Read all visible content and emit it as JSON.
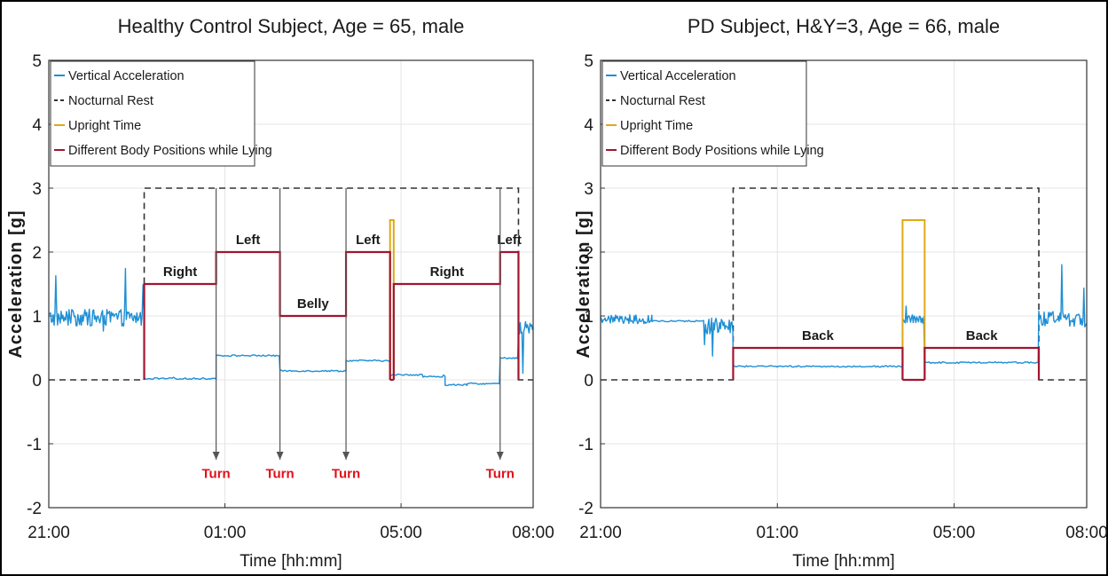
{
  "figure": {
    "frame_color": "#000000",
    "background": "#ffffff"
  },
  "chart_data": [
    {
      "type": "line",
      "title": "Healthy Control Subject, Age = 65, male",
      "xlabel": "Time [hh:mm]",
      "ylabel": "Acceleration [g]",
      "xlim": [
        "21:00",
        "08:00"
      ],
      "ylim": [
        -2,
        5
      ],
      "x_ticks": [
        "21:00",
        "01:00",
        "05:00",
        "08:00"
      ],
      "y_ticks": [
        -2,
        -1,
        0,
        1,
        2,
        3,
        4,
        5
      ],
      "grid": true,
      "legend": {
        "placement": "top-left",
        "entries": [
          {
            "label": "Vertical Acceleration",
            "color": "#1e8fd5",
            "dash": "solid"
          },
          {
            "label": "Nocturnal Rest",
            "color": "#333333",
            "dash": "dashed"
          },
          {
            "label": "Upright Time",
            "color": "#e0a81a",
            "dash": "solid"
          },
          {
            "label": "Different Body Positions while Lying",
            "color": "#a01530",
            "dash": "solid"
          }
        ]
      },
      "series": [
        {
          "name": "Vertical Acceleration",
          "color": "#1e8fd5",
          "segments": [
            {
              "start": "21:00",
              "end": "23:10",
              "level": 0.97,
              "noise": "high"
            },
            {
              "start": "23:10",
              "end": "00:48",
              "level": 0.02,
              "noise": "low"
            },
            {
              "start": "00:48",
              "end": "02:15",
              "level": 0.38,
              "noise": "low"
            },
            {
              "start": "02:15",
              "end": "03:45",
              "level": 0.14,
              "noise": "low"
            },
            {
              "start": "03:45",
              "end": "04:45",
              "level": 0.3,
              "noise": "low"
            },
            {
              "start": "04:45",
              "end": "05:30",
              "level": 0.08,
              "noise": "low"
            },
            {
              "start": "05:30",
              "end": "06:00",
              "level": 0.05,
              "noise": "low"
            },
            {
              "start": "06:00",
              "end": "06:30",
              "level": -0.08,
              "noise": "low"
            },
            {
              "start": "06:30",
              "end": "07:15",
              "level": -0.06,
              "noise": "low"
            },
            {
              "start": "07:15",
              "end": "07:40",
              "level": 0.34,
              "noise": "low"
            },
            {
              "start": "07:40",
              "end": "08:00",
              "level": 0.8,
              "noise": "high"
            }
          ]
        },
        {
          "name": "Nocturnal Rest",
          "color": "#333333",
          "rest_start": "23:10",
          "rest_end": "07:40",
          "rest_level": 3,
          "outside_level": 0
        },
        {
          "name": "Upright Time",
          "color": "#e0a81a",
          "windows": [
            {
              "start": "04:45",
              "end": "04:50",
              "level": 2.5
            }
          ]
        },
        {
          "name": "Different Body Positions while Lying",
          "color": "#a01530",
          "steps": [
            {
              "start": "23:10",
              "end": "00:48",
              "level": 1.5,
              "label": "Right"
            },
            {
              "start": "00:48",
              "end": "02:15",
              "level": 2.0,
              "label": "Left"
            },
            {
              "start": "02:15",
              "end": "03:45",
              "level": 1.0,
              "label": "Belly"
            },
            {
              "start": "03:45",
              "end": "04:45",
              "level": 2.0,
              "label": "Left"
            },
            {
              "start": "04:50",
              "end": "07:15",
              "level": 1.5,
              "label": "Right"
            },
            {
              "start": "07:15",
              "end": "07:40",
              "level": 2.0,
              "label": "Left"
            }
          ]
        }
      ],
      "annotations": {
        "turn_label": "Turn",
        "turn_color": "#e0101a",
        "turn_times": [
          "00:48",
          "02:15",
          "03:45",
          "07:15"
        ]
      }
    },
    {
      "type": "line",
      "title": "PD Subject, H&Y=3, Age = 66, male",
      "xlabel": "Time [hh:mm]",
      "ylabel": "Acceleration [g]",
      "xlim": [
        "21:00",
        "08:00"
      ],
      "ylim": [
        -2,
        5
      ],
      "x_ticks": [
        "21:00",
        "01:00",
        "05:00",
        "08:00"
      ],
      "y_ticks": [
        -2,
        -1,
        0,
        1,
        2,
        3,
        4,
        5
      ],
      "grid": true,
      "legend": {
        "placement": "top-left",
        "entries": [
          {
            "label": "Vertical Acceleration",
            "color": "#1e8fd5",
            "dash": "solid"
          },
          {
            "label": "Nocturnal Rest",
            "color": "#333333",
            "dash": "dashed"
          },
          {
            "label": "Upright Time",
            "color": "#e0a81a",
            "dash": "solid"
          },
          {
            "label": "Different Body Positions while Lying",
            "color": "#a01530",
            "dash": "solid"
          }
        ]
      },
      "series": [
        {
          "name": "Vertical Acceleration",
          "color": "#1e8fd5",
          "segments": [
            {
              "start": "21:00",
              "end": "22:10",
              "level": 0.95,
              "noise": "medium"
            },
            {
              "start": "22:10",
              "end": "23:20",
              "level": 0.92,
              "noise": "low"
            },
            {
              "start": "23:20",
              "end": "00:00",
              "level": 0.85,
              "noise": "high"
            },
            {
              "start": "00:00",
              "end": "03:50",
              "level": 0.21,
              "noise": "low"
            },
            {
              "start": "03:50",
              "end": "04:20",
              "level": 0.95,
              "noise": "medium"
            },
            {
              "start": "04:20",
              "end": "06:55",
              "level": 0.27,
              "noise": "low"
            },
            {
              "start": "06:55",
              "end": "08:00",
              "level": 0.95,
              "noise": "high"
            }
          ]
        },
        {
          "name": "Nocturnal Rest",
          "color": "#333333",
          "rest_start": "00:00",
          "rest_end": "06:55",
          "rest_level": 3,
          "outside_level": 0
        },
        {
          "name": "Upright Time",
          "color": "#e0a81a",
          "windows": [
            {
              "start": "03:50",
              "end": "04:20",
              "level": 2.5
            }
          ]
        },
        {
          "name": "Different Body Positions while Lying",
          "color": "#a01530",
          "steps": [
            {
              "start": "00:00",
              "end": "03:50",
              "level": 0.5,
              "label": "Back"
            },
            {
              "start": "04:20",
              "end": "06:55",
              "level": 0.5,
              "label": "Back"
            }
          ]
        }
      ]
    }
  ]
}
